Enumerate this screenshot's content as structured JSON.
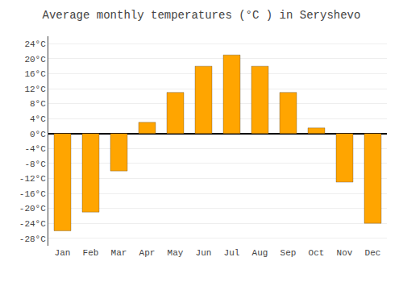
{
  "chart_data": {
    "type": "bar",
    "title": "Average monthly temperatures (°C ) in Seryshevo",
    "categories": [
      "Jan",
      "Feb",
      "Mar",
      "Apr",
      "May",
      "Jun",
      "Jul",
      "Aug",
      "Sep",
      "Oct",
      "Nov",
      "Dec"
    ],
    "values": [
      -26,
      -21,
      -10,
      3,
      11,
      18,
      21,
      18,
      11,
      1.5,
      -13,
      -24
    ],
    "color": "#FFA500",
    "ylim": [
      -30,
      26
    ],
    "yticks": [
      {
        "value": -28,
        "label": "-28°C"
      },
      {
        "value": -24,
        "label": "-24°C"
      },
      {
        "value": -20,
        "label": "-20°C"
      },
      {
        "value": -16,
        "label": "-16°C"
      },
      {
        "value": -12,
        "label": "-12°C"
      },
      {
        "value": -8,
        "label": "-8°C"
      },
      {
        "value": -4,
        "label": "-4°C"
      },
      {
        "value": 0,
        "label": "0°C"
      },
      {
        "value": 4,
        "label": "4°C"
      },
      {
        "value": 8,
        "label": "8°C"
      },
      {
        "value": 12,
        "label": "12°C"
      },
      {
        "value": 16,
        "label": "16°C"
      },
      {
        "value": 20,
        "label": "20°C"
      },
      {
        "value": 24,
        "label": "24°C"
      }
    ],
    "grid": true
  }
}
